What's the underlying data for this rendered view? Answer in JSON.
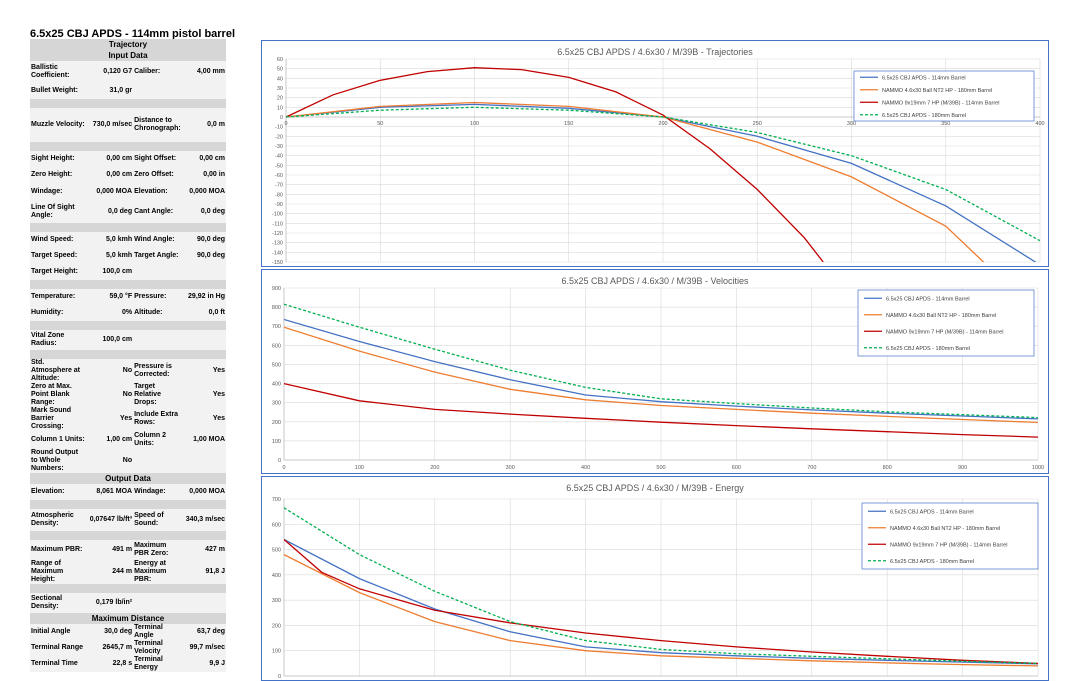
{
  "report_title": "6.5x25 CBJ APDS - 114mm pistol barrel",
  "rows": [
    {
      "type": "hdr",
      "text": "Trajectory"
    },
    {
      "type": "hdr",
      "text": "Input Data"
    },
    {
      "type": "row",
      "k1": "Ballistic Coefficient:",
      "v1": "0,120 G7",
      "k2": "Caliber:",
      "v2": "4,00 mm",
      "h": 22
    },
    {
      "type": "row",
      "k1": "Bullet Weight:",
      "v1": "31,0 gr",
      "k2": "",
      "v2": "",
      "h": 16
    },
    {
      "type": "sep"
    },
    {
      "type": "row",
      "k1": "Muzzle Velocity:",
      "v1": "730,0 m/sec",
      "k2": "Distance to Chronograph:",
      "v2": "0,0 m",
      "h": 34
    },
    {
      "type": "sep"
    },
    {
      "type": "row",
      "k1": "Sight Height:",
      "v1": "0,00 cm",
      "k2": "Sight Offset:",
      "v2": "0,00 cm",
      "h": 16
    },
    {
      "type": "row",
      "k1": "Zero Height:",
      "v1": "0,00 cm",
      "k2": "Zero Offset:",
      "v2": "0,00 in",
      "h": 16
    },
    {
      "type": "row",
      "k1": "Windage:",
      "v1": "0,000 MOA",
      "k2": "Elevation:",
      "v2": "0,000 MOA",
      "h": 18
    },
    {
      "type": "row",
      "k1": "Line Of Sight Angle:",
      "v1": "0,0 deg",
      "k2": "Cant Angle:",
      "v2": "0,0 deg",
      "h": 22
    },
    {
      "type": "sep"
    },
    {
      "type": "row",
      "k1": "Wind Speed:",
      "v1": "5,0 kmh",
      "k2": "Wind Angle:",
      "v2": "90,0 deg",
      "h": 16
    },
    {
      "type": "row",
      "k1": "Target Speed:",
      "v1": "5,0 kmh",
      "k2": "Target Angle:",
      "v2": "90,0 deg",
      "h": 16
    },
    {
      "type": "row",
      "k1": "Target Height:",
      "v1": "100,0 cm",
      "k2": "",
      "v2": "",
      "h": 16
    },
    {
      "type": "sep"
    },
    {
      "type": "row",
      "k1": "Temperature:",
      "v1": "59,0 °F",
      "k2": "Pressure:",
      "v2": "29,92 in Hg",
      "h": 16
    },
    {
      "type": "row",
      "k1": "Humidity:",
      "v1": "0%",
      "k2": "Altitude:",
      "v2": "0,0 ft",
      "h": 16
    },
    {
      "type": "sep"
    },
    {
      "type": "row",
      "k1": "Vital Zone Radius:",
      "v1": "100,0 cm",
      "k2": "",
      "v2": "",
      "h": 20
    },
    {
      "type": "sep"
    },
    {
      "type": "row",
      "k1": "Std. Atmosphere at Altitude:",
      "v1": "No",
      "k2": "Pressure is Corrected:",
      "v2": "Yes",
      "h": 24
    },
    {
      "type": "row",
      "k1": "Zero at Max. Point Blank Range:",
      "v1": "No",
      "k2": "Target Relative Drops:",
      "v2": "Yes",
      "h": 24
    },
    {
      "type": "row",
      "k1": "Mark Sound Barrier Crossing:",
      "v1": "Yes",
      "k2": "Include Extra Rows:",
      "v2": "Yes",
      "h": 24
    },
    {
      "type": "row",
      "k1": "Column 1 Units:",
      "v1": "1,00 cm",
      "k2": "Column 2 Units:",
      "v2": "1,00 MOA",
      "h": 18
    },
    {
      "type": "row",
      "k1": "Round Output to Whole Numbers:",
      "v1": "No",
      "k2": "",
      "v2": "",
      "h": 24
    },
    {
      "type": "hdr",
      "text": "Output Data"
    },
    {
      "type": "row",
      "k1": "Elevation:",
      "v1": "8,061 MOA",
      "k2": "Windage:",
      "v2": "0,000 MOA",
      "h": 16
    },
    {
      "type": "sep"
    },
    {
      "type": "row",
      "k1": "Atmospheric Density:",
      "v1": "0,07647 lb/ft³",
      "k2": "Speed of Sound:",
      "v2": "340,3 m/sec",
      "h": 22
    },
    {
      "type": "sep"
    },
    {
      "type": "row",
      "k1": "Maximum PBR:",
      "v1": "491 m",
      "k2": "Maximum PBR Zero:",
      "v2": "427 m",
      "h": 20
    },
    {
      "type": "row",
      "k1": "Range of Maximum Height:",
      "v1": "244 m",
      "k2": "Energy at Maximum PBR:",
      "v2": "91,8 J",
      "h": 24
    },
    {
      "type": "sep"
    },
    {
      "type": "row",
      "k1": "Sectional Density:",
      "v1": "0,179 lb/in²",
      "k2": "",
      "v2": "",
      "h": 20
    },
    {
      "type": "hdr",
      "text": "Maximum Distance"
    },
    {
      "type": "row",
      "k1": "Initial Angle",
      "v1": "30,0 deg",
      "k2": "Terminal Angle",
      "v2": "63,7 deg",
      "h": 16
    },
    {
      "type": "row",
      "k1": "Terminal Range",
      "v1": "2645,7 m",
      "k2": "Terminal Velocity",
      "v2": "99,7 m/sec",
      "h": 16
    },
    {
      "type": "row",
      "k1": "Terminal Time",
      "v1": "22,8 s",
      "k2": "Terminal Energy",
      "v2": "9,9 J",
      "h": 16
    }
  ],
  "series_colors": [
    "#4472c4",
    "#ed7d31",
    "#c00000",
    "#00b050"
  ],
  "chart_data": [
    {
      "type": "line",
      "title": "6.5x25 CBJ APDS / 4.6x30 / M/39B - Trajectories",
      "xlim": [
        0,
        400
      ],
      "xticks": [
        0,
        50,
        100,
        150,
        200,
        250,
        300,
        350,
        400
      ],
      "ylim": [
        -150,
        60
      ],
      "ystep": 10,
      "grid": true,
      "legend_position": "top-right",
      "series": [
        {
          "name": "6.5x25 CBJ APDS - 114mm Barrel",
          "dash": false,
          "x": [
            0,
            50,
            100,
            150,
            200,
            250,
            300,
            350,
            400
          ],
          "y": [
            0,
            10,
            13,
            9,
            0,
            -20,
            -48,
            -92,
            -153
          ]
        },
        {
          "name": "NAMMO 4.6x30 Ball NT2 HP - 180mm Barrel",
          "dash": false,
          "x": [
            0,
            50,
            100,
            150,
            200,
            250,
            300,
            350,
            370
          ],
          "y": [
            0,
            11,
            15,
            11,
            0,
            -26,
            -62,
            -113,
            -150
          ]
        },
        {
          "name": "NAMMO 9x19mm 7 HP (M/39B) - 114mm Barrel",
          "dash": false,
          "x": [
            0,
            25,
            50,
            75,
            100,
            125,
            150,
            175,
            200,
            225,
            250,
            275,
            285
          ],
          "y": [
            0,
            23,
            38,
            47,
            51,
            49,
            41,
            26,
            2,
            -33,
            -75,
            -125,
            -150
          ]
        },
        {
          "name": "6.5x25 CBJ APDS - 180mm Barrel",
          "dash": true,
          "x": [
            0,
            50,
            100,
            150,
            200,
            250,
            300,
            350,
            400
          ],
          "y": [
            0,
            7,
            10,
            7,
            0,
            -16,
            -40,
            -75,
            -128
          ]
        }
      ]
    },
    {
      "type": "line",
      "title": "6.5x25 CBJ APDS / 4.6x30 / M/39B - Velocities",
      "xlim": [
        0,
        1000
      ],
      "xticks": [
        0,
        100,
        200,
        300,
        400,
        500,
        600,
        700,
        800,
        900,
        1000
      ],
      "ylim": [
        0,
        900
      ],
      "ystep": 100,
      "grid": true,
      "legend_position": "top-right",
      "series": [
        {
          "name": "6.5x25 CBJ APDS - 114mm Barrel",
          "dash": false,
          "x": [
            0,
            100,
            200,
            300,
            400,
            500,
            600,
            700,
            800,
            900,
            1000
          ],
          "y": [
            735,
            620,
            515,
            420,
            340,
            305,
            282,
            262,
            245,
            230,
            215
          ]
        },
        {
          "name": "NAMMO 4.6x30 Ball NT2 HP - 180mm Barrel",
          "dash": false,
          "x": [
            0,
            100,
            200,
            300,
            400,
            500,
            600,
            700,
            800,
            900,
            1000
          ],
          "y": [
            695,
            570,
            460,
            370,
            315,
            285,
            265,
            245,
            228,
            212,
            197
          ]
        },
        {
          "name": "NAMMO 9x19mm 7 HP (M/39B) - 114mm Barrel",
          "dash": false,
          "x": [
            0,
            100,
            200,
            300,
            400,
            500,
            600,
            700,
            800,
            900,
            1000
          ],
          "y": [
            400,
            310,
            265,
            240,
            218,
            198,
            180,
            163,
            148,
            133,
            120
          ]
        },
        {
          "name": "6.5x25 CBJ APDS - 180mm Barrel",
          "dash": true,
          "x": [
            0,
            100,
            200,
            300,
            400,
            500,
            600,
            700,
            800,
            900,
            1000
          ],
          "y": [
            815,
            695,
            580,
            470,
            380,
            320,
            295,
            272,
            252,
            237,
            222
          ]
        }
      ]
    },
    {
      "type": "line",
      "title": "6.5x25 CBJ APDS / 4.6x30 / M/39B - Energy",
      "xlim": [
        0,
        1000
      ],
      "xticks": [],
      "ylim": [
        0,
        700
      ],
      "ystep": 100,
      "grid": true,
      "legend_position": "top-right",
      "series": [
        {
          "name": "6.5x25 CBJ APDS - 114mm Barrel",
          "dash": false,
          "x": [
            0,
            100,
            200,
            300,
            400,
            500,
            600,
            700,
            800,
            900,
            1000
          ],
          "y": [
            540,
            385,
            265,
            175,
            115,
            92,
            80,
            70,
            62,
            55,
            48
          ]
        },
        {
          "name": "NAMMO 4.6x30 Ball NT2 HP - 180mm Barrel",
          "dash": false,
          "x": [
            0,
            100,
            200,
            300,
            400,
            500,
            600,
            700,
            800,
            900,
            1000
          ],
          "y": [
            480,
            330,
            215,
            140,
            100,
            80,
            70,
            60,
            52,
            45,
            40
          ]
        },
        {
          "name": "NAMMO 9x19mm 7 HP (M/39B) - 114mm Barrel",
          "dash": false,
          "x": [
            0,
            50,
            100,
            200,
            300,
            400,
            500,
            600,
            700,
            800,
            900,
            1000
          ],
          "y": [
            540,
            410,
            345,
            260,
            210,
            170,
            140,
            115,
            95,
            78,
            62,
            50
          ]
        },
        {
          "name": "6.5x25 CBJ APDS - 180mm Barrel",
          "dash": true,
          "x": [
            0,
            100,
            200,
            300,
            400,
            500,
            600,
            700,
            800,
            900,
            1000
          ],
          "y": [
            665,
            480,
            335,
            215,
            140,
            105,
            88,
            78,
            68,
            58,
            50
          ]
        }
      ]
    }
  ]
}
